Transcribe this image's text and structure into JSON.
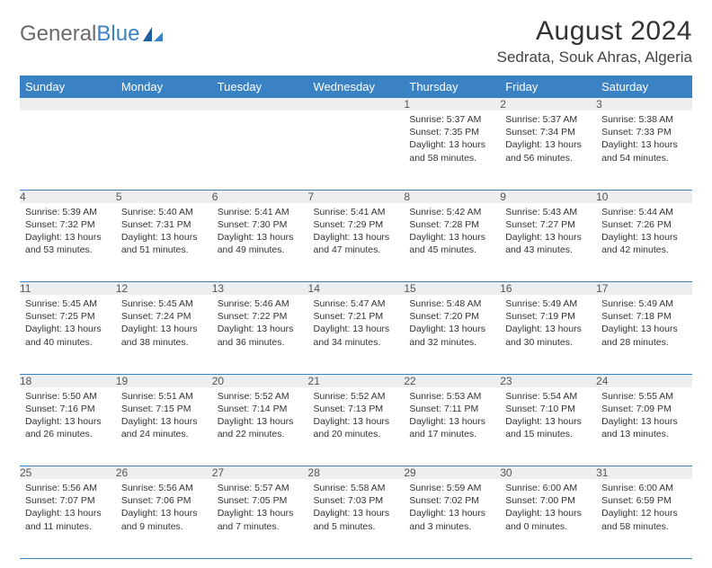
{
  "brand": {
    "word1": "General",
    "word2": "Blue"
  },
  "title": "August 2024",
  "location": "Sedrata, Souk Ahras, Algeria",
  "colors": {
    "header_bg": "#3b82c4",
    "header_text": "#ffffff",
    "daynum_bg": "#eceeef",
    "rule": "#3b82c4",
    "logo_gray": "#6a6a6a",
    "logo_blue": "#3b82c4"
  },
  "weekdays": [
    "Sunday",
    "Monday",
    "Tuesday",
    "Wednesday",
    "Thursday",
    "Friday",
    "Saturday"
  ],
  "weeks": [
    [
      null,
      null,
      null,
      null,
      {
        "n": "1",
        "sr": "5:37 AM",
        "ss": "7:35 PM",
        "dl": "13 hours and 58 minutes."
      },
      {
        "n": "2",
        "sr": "5:37 AM",
        "ss": "7:34 PM",
        "dl": "13 hours and 56 minutes."
      },
      {
        "n": "3",
        "sr": "5:38 AM",
        "ss": "7:33 PM",
        "dl": "13 hours and 54 minutes."
      }
    ],
    [
      {
        "n": "4",
        "sr": "5:39 AM",
        "ss": "7:32 PM",
        "dl": "13 hours and 53 minutes."
      },
      {
        "n": "5",
        "sr": "5:40 AM",
        "ss": "7:31 PM",
        "dl": "13 hours and 51 minutes."
      },
      {
        "n": "6",
        "sr": "5:41 AM",
        "ss": "7:30 PM",
        "dl": "13 hours and 49 minutes."
      },
      {
        "n": "7",
        "sr": "5:41 AM",
        "ss": "7:29 PM",
        "dl": "13 hours and 47 minutes."
      },
      {
        "n": "8",
        "sr": "5:42 AM",
        "ss": "7:28 PM",
        "dl": "13 hours and 45 minutes."
      },
      {
        "n": "9",
        "sr": "5:43 AM",
        "ss": "7:27 PM",
        "dl": "13 hours and 43 minutes."
      },
      {
        "n": "10",
        "sr": "5:44 AM",
        "ss": "7:26 PM",
        "dl": "13 hours and 42 minutes."
      }
    ],
    [
      {
        "n": "11",
        "sr": "5:45 AM",
        "ss": "7:25 PM",
        "dl": "13 hours and 40 minutes."
      },
      {
        "n": "12",
        "sr": "5:45 AM",
        "ss": "7:24 PM",
        "dl": "13 hours and 38 minutes."
      },
      {
        "n": "13",
        "sr": "5:46 AM",
        "ss": "7:22 PM",
        "dl": "13 hours and 36 minutes."
      },
      {
        "n": "14",
        "sr": "5:47 AM",
        "ss": "7:21 PM",
        "dl": "13 hours and 34 minutes."
      },
      {
        "n": "15",
        "sr": "5:48 AM",
        "ss": "7:20 PM",
        "dl": "13 hours and 32 minutes."
      },
      {
        "n": "16",
        "sr": "5:49 AM",
        "ss": "7:19 PM",
        "dl": "13 hours and 30 minutes."
      },
      {
        "n": "17",
        "sr": "5:49 AM",
        "ss": "7:18 PM",
        "dl": "13 hours and 28 minutes."
      }
    ],
    [
      {
        "n": "18",
        "sr": "5:50 AM",
        "ss": "7:16 PM",
        "dl": "13 hours and 26 minutes."
      },
      {
        "n": "19",
        "sr": "5:51 AM",
        "ss": "7:15 PM",
        "dl": "13 hours and 24 minutes."
      },
      {
        "n": "20",
        "sr": "5:52 AM",
        "ss": "7:14 PM",
        "dl": "13 hours and 22 minutes."
      },
      {
        "n": "21",
        "sr": "5:52 AM",
        "ss": "7:13 PM",
        "dl": "13 hours and 20 minutes."
      },
      {
        "n": "22",
        "sr": "5:53 AM",
        "ss": "7:11 PM",
        "dl": "13 hours and 17 minutes."
      },
      {
        "n": "23",
        "sr": "5:54 AM",
        "ss": "7:10 PM",
        "dl": "13 hours and 15 minutes."
      },
      {
        "n": "24",
        "sr": "5:55 AM",
        "ss": "7:09 PM",
        "dl": "13 hours and 13 minutes."
      }
    ],
    [
      {
        "n": "25",
        "sr": "5:56 AM",
        "ss": "7:07 PM",
        "dl": "13 hours and 11 minutes."
      },
      {
        "n": "26",
        "sr": "5:56 AM",
        "ss": "7:06 PM",
        "dl": "13 hours and 9 minutes."
      },
      {
        "n": "27",
        "sr": "5:57 AM",
        "ss": "7:05 PM",
        "dl": "13 hours and 7 minutes."
      },
      {
        "n": "28",
        "sr": "5:58 AM",
        "ss": "7:03 PM",
        "dl": "13 hours and 5 minutes."
      },
      {
        "n": "29",
        "sr": "5:59 AM",
        "ss": "7:02 PM",
        "dl": "13 hours and 3 minutes."
      },
      {
        "n": "30",
        "sr": "6:00 AM",
        "ss": "7:00 PM",
        "dl": "13 hours and 0 minutes."
      },
      {
        "n": "31",
        "sr": "6:00 AM",
        "ss": "6:59 PM",
        "dl": "12 hours and 58 minutes."
      }
    ]
  ],
  "labels": {
    "sunrise": "Sunrise:",
    "sunset": "Sunset:",
    "daylight": "Daylight:"
  }
}
